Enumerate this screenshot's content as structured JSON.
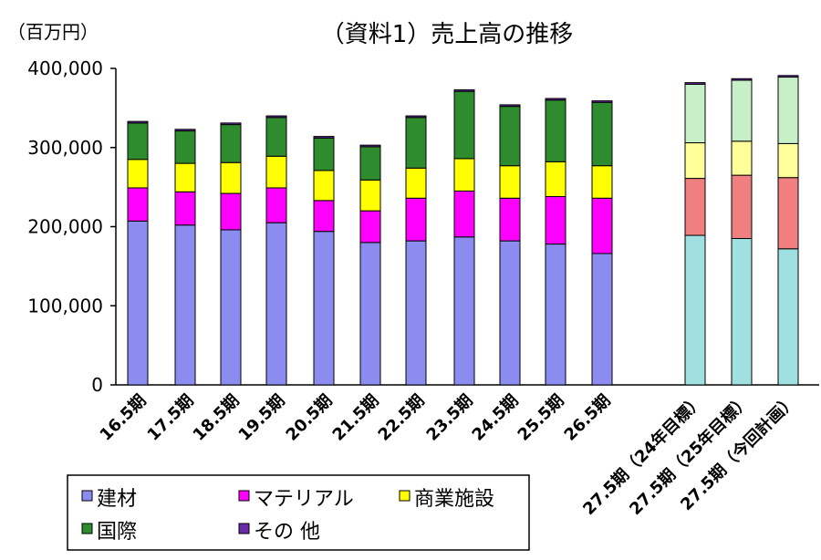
{
  "chart_data": {
    "type": "bar",
    "stacked": true,
    "title": "（資料1）売上高の推移",
    "unit_label": "（百万円）",
    "y_ticks": [
      0,
      100000,
      200000,
      300000,
      400000
    ],
    "y_tick_labels": [
      "0",
      "100,000",
      "200,000",
      "300,000",
      "400,000"
    ],
    "ylim": [
      0,
      400000
    ],
    "categories": [
      "16.5期",
      "17.5期",
      "18.5期",
      "19.5期",
      "20.5期",
      "21.5期",
      "22.5期",
      "23.5期",
      "24.5期",
      "25.5期",
      "26.5期",
      "27.5期（24年目標）",
      "27.5期（25年目標）",
      "27.5期（今回計画）"
    ],
    "series": [
      {
        "name": "建材",
        "color": "#8c8cf0",
        "target_color": "#a0e0e0",
        "values": [
          207000,
          202000,
          196000,
          205000,
          194000,
          180000,
          182000,
          187000,
          182000,
          178000,
          166000,
          189000,
          185000,
          172000
        ]
      },
      {
        "name": "マテリアル",
        "color": "#ff00ff",
        "target_color": "#f08080",
        "values": [
          42000,
          42000,
          46000,
          44000,
          39000,
          40000,
          54000,
          58000,
          54000,
          60000,
          70000,
          72000,
          80000,
          90000
        ]
      },
      {
        "name": "商業施設",
        "color": "#ffff00",
        "target_color": "#ffff99",
        "values": [
          36000,
          36000,
          39000,
          40000,
          38000,
          39000,
          38000,
          41000,
          41000,
          44000,
          41000,
          45000,
          43000,
          43000
        ]
      },
      {
        "name": "国際",
        "color": "#2e8b2e",
        "target_color": "#c8f0c8",
        "values": [
          46000,
          41000,
          48000,
          49000,
          41000,
          42000,
          64000,
          85000,
          75000,
          78000,
          80000,
          74000,
          77000,
          84000
        ]
      },
      {
        "name": "その 他",
        "color": "#6a2aa8",
        "target_color": "#6a2aa8",
        "values": [
          2000,
          2000,
          2000,
          2000,
          2000,
          2000,
          2000,
          2000,
          2000,
          2000,
          2000,
          2000,
          2000,
          2000
        ]
      }
    ],
    "target_categories": [
      11,
      12,
      13
    ],
    "legend": {
      "placement": "bottom-left",
      "rows": [
        [
          "建材",
          "マテリアル",
          "商業施設"
        ],
        [
          "国際",
          "その 他"
        ]
      ]
    },
    "grid": false
  }
}
